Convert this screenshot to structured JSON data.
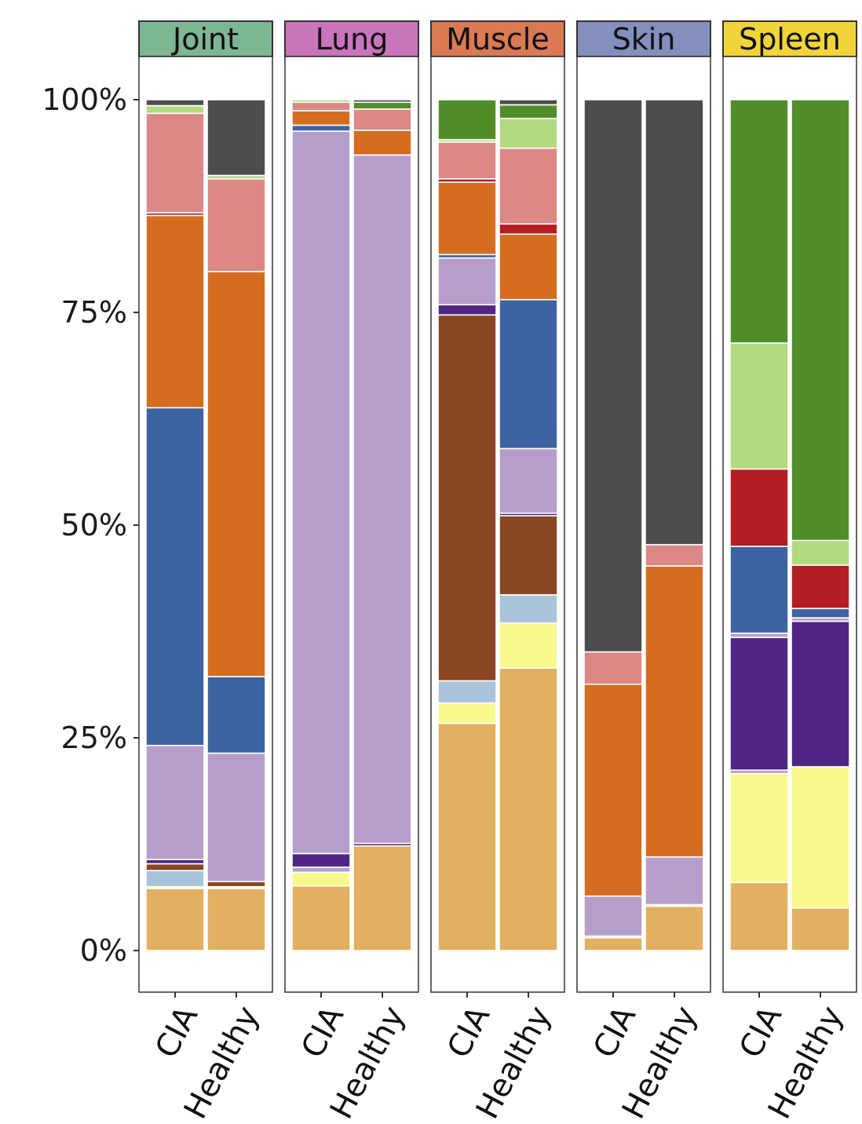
{
  "chart_data": {
    "type": "bar",
    "stacked": true,
    "percent": true,
    "title": "",
    "xlabel": "",
    "ylabel": "",
    "ylim": [
      0,
      100
    ],
    "yticks": [
      "0%",
      "25%",
      "50%",
      "75%",
      "100%"
    ],
    "grid": false,
    "legend": "none",
    "categories": [
      "CIA",
      "Healthy"
    ],
    "colors": {
      "c1": "#E3B062",
      "c2": "#F9FA8D",
      "c3": "#A9C3DB",
      "c4": "#884623",
      "c5": "#502685",
      "c6": "#B59FCA",
      "c7": "#3E63A2",
      "c8": "#D56D20",
      "c9": "#B31E22",
      "c10": "#DB8887",
      "c11": "#B2DA7F",
      "c12": "#518E2A",
      "c13": "#4D4D4D"
    },
    "panels": [
      {
        "name": "Joint",
        "strip_color": "#7DB693",
        "bars": [
          {
            "category": "CIA",
            "segments": [
              {
                "k": "c1",
                "v": 7.3
              },
              {
                "k": "c2",
                "v": 0.2
              },
              {
                "k": "c3",
                "v": 1.9
              },
              {
                "k": "c4",
                "v": 0.8
              },
              {
                "k": "c5",
                "v": 0.5
              },
              {
                "k": "c6",
                "v": 13.4
              },
              {
                "k": "c7",
                "v": 39.7
              },
              {
                "k": "c8",
                "v": 22.6
              },
              {
                "k": "c9",
                "v": 0.3
              },
              {
                "k": "c10",
                "v": 11.7
              },
              {
                "k": "c11",
                "v": 0.9
              },
              {
                "k": "c13",
                "v": 0.7
              }
            ]
          },
          {
            "category": "Healthy",
            "segments": [
              {
                "k": "c1",
                "v": 7.3
              },
              {
                "k": "c2",
                "v": 0.2
              },
              {
                "k": "c4",
                "v": 0.6
              },
              {
                "k": "c6",
                "v": 15.1
              },
              {
                "k": "c7",
                "v": 9.0
              },
              {
                "k": "c8",
                "v": 47.6
              },
              {
                "k": "c10",
                "v": 10.9
              },
              {
                "k": "c11",
                "v": 0.4
              },
              {
                "k": "c13",
                "v": 8.9
              }
            ]
          }
        ]
      },
      {
        "name": "Lung",
        "strip_color": "#C875BC",
        "bars": [
          {
            "category": "CIA",
            "segments": [
              {
                "k": "c1",
                "v": 7.6
              },
              {
                "k": "c2",
                "v": 1.6
              },
              {
                "k": "c6",
                "v": 0.6
              },
              {
                "k": "c5",
                "v": 1.6
              },
              {
                "k": "c6",
                "v": 84.9
              },
              {
                "k": "c7",
                "v": 0.7
              },
              {
                "k": "c8",
                "v": 1.7
              },
              {
                "k": "c10",
                "v": 1.0
              },
              {
                "k": "c11",
                "v": 0.3
              }
            ]
          },
          {
            "category": "Healthy",
            "segments": [
              {
                "k": "c1",
                "v": 12.3
              },
              {
                "k": "c5",
                "v": 0.3
              },
              {
                "k": "c6",
                "v": 80.9
              },
              {
                "k": "c8",
                "v": 2.9
              },
              {
                "k": "c10",
                "v": 2.5
              },
              {
                "k": "c12",
                "v": 0.8
              },
              {
                "k": "c13",
                "v": 0.3
              }
            ]
          }
        ]
      },
      {
        "name": "Muscle",
        "strip_color": "#D97A55",
        "bars": [
          {
            "category": "CIA",
            "segments": [
              {
                "k": "c1",
                "v": 26.7
              },
              {
                "k": "c2",
                "v": 2.4
              },
              {
                "k": "c3",
                "v": 2.6
              },
              {
                "k": "c4",
                "v": 43.0
              },
              {
                "k": "c5",
                "v": 1.2
              },
              {
                "k": "c6",
                "v": 5.5
              },
              {
                "k": "c7",
                "v": 0.4
              },
              {
                "k": "c8",
                "v": 8.5
              },
              {
                "k": "c9",
                "v": 0.4
              },
              {
                "k": "c10",
                "v": 4.3
              },
              {
                "k": "c11",
                "v": 0.3
              },
              {
                "k": "c12",
                "v": 4.7
              }
            ]
          },
          {
            "category": "Healthy",
            "segments": [
              {
                "k": "c1",
                "v": 33.2
              },
              {
                "k": "c2",
                "v": 5.3
              },
              {
                "k": "c3",
                "v": 3.3
              },
              {
                "k": "c4",
                "v": 9.3
              },
              {
                "k": "c5",
                "v": 0.3
              },
              {
                "k": "c6",
                "v": 7.6
              },
              {
                "k": "c7",
                "v": 17.5
              },
              {
                "k": "c8",
                "v": 7.7
              },
              {
                "k": "c9",
                "v": 1.2
              },
              {
                "k": "c10",
                "v": 8.9
              },
              {
                "k": "c11",
                "v": 3.5
              },
              {
                "k": "c12",
                "v": 1.6
              },
              {
                "k": "c13",
                "v": 0.6
              }
            ]
          }
        ]
      },
      {
        "name": "Skin",
        "strip_color": "#8390BE",
        "bars": [
          {
            "category": "CIA",
            "segments": [
              {
                "k": "c1",
                "v": 1.5
              },
              {
                "k": "c2",
                "v": 0.2
              },
              {
                "k": "c6",
                "v": 4.7
              },
              {
                "k": "c8",
                "v": 24.9
              },
              {
                "k": "c10",
                "v": 3.8
              },
              {
                "k": "c13",
                "v": 64.9
              }
            ]
          },
          {
            "category": "Healthy",
            "segments": [
              {
                "k": "c1",
                "v": 5.2
              },
              {
                "k": "c2",
                "v": 0.2
              },
              {
                "k": "c6",
                "v": 5.6
              },
              {
                "k": "c8",
                "v": 34.2
              },
              {
                "k": "c10",
                "v": 2.5
              },
              {
                "k": "c13",
                "v": 52.3
              }
            ]
          }
        ]
      },
      {
        "name": "Spleen",
        "strip_color": "#F1D43A",
        "bars": [
          {
            "category": "CIA",
            "segments": [
              {
                "k": "c1",
                "v": 8.0
              },
              {
                "k": "c2",
                "v": 12.8
              },
              {
                "k": "c6",
                "v": 0.4
              },
              {
                "k": "c5",
                "v": 15.6
              },
              {
                "k": "c6",
                "v": 0.5
              },
              {
                "k": "c7",
                "v": 10.2
              },
              {
                "k": "c9",
                "v": 9.1
              },
              {
                "k": "c11",
                "v": 14.8
              },
              {
                "k": "c12",
                "v": 28.6
              }
            ]
          },
          {
            "category": "Healthy",
            "segments": [
              {
                "k": "c1",
                "v": 5.0
              },
              {
                "k": "c2",
                "v": 16.6
              },
              {
                "k": "c5",
                "v": 17.1
              },
              {
                "k": "c6",
                "v": 0.4
              },
              {
                "k": "c7",
                "v": 1.1
              },
              {
                "k": "c9",
                "v": 5.1
              },
              {
                "k": "c11",
                "v": 2.9
              },
              {
                "k": "c12",
                "v": 51.8
              }
            ]
          }
        ]
      }
    ]
  }
}
